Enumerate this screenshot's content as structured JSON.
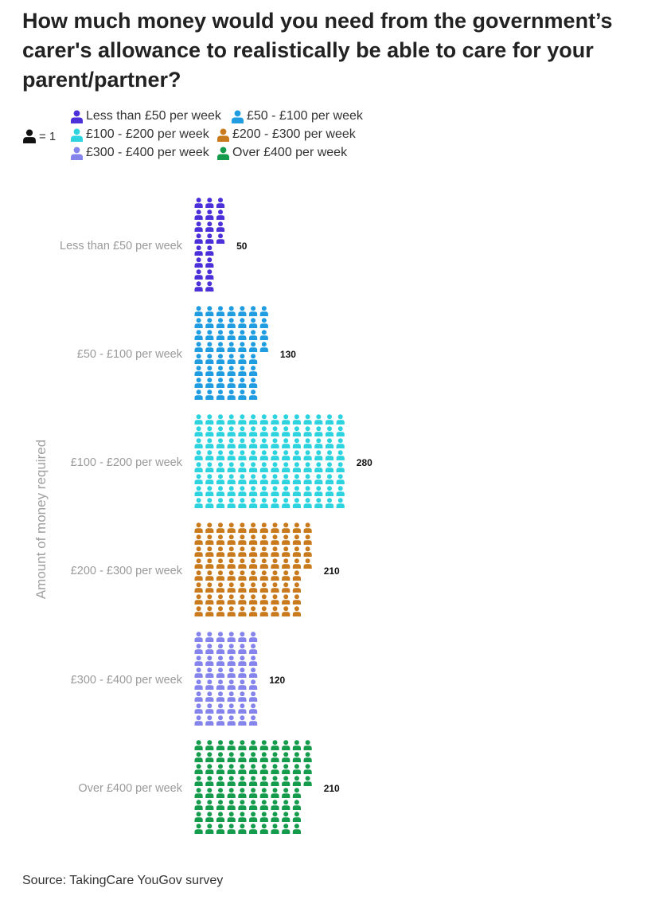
{
  "title": "How much money would you need from the government’s carer's allowance to realistically be able to care for your parent/partner?",
  "unit_key": {
    "label": "= 1",
    "icon": "person-icon"
  },
  "source": "Source: TakingCare YouGov survey",
  "chart_data": {
    "type": "bar",
    "subtype": "pictogram",
    "orientation": "horizontal",
    "ylabel": "Amount of money required",
    "icon_value": 1,
    "categories": [
      "Less than £50 per week",
      "£50 - £100 per week",
      "£100 - £200 per week",
      "£200 - £300 per week",
      "£300 - £400 per week",
      "Over £400 per week"
    ],
    "values": [
      50,
      130,
      280,
      210,
      120,
      210
    ],
    "colors": [
      "#4b2fd8",
      "#1f9de0",
      "#2ed3e0",
      "#c97a1d",
      "#8484ec",
      "#149c4c"
    ],
    "legend": {
      "placement": "top-left",
      "entries": [
        "Less than £50 per week",
        "£50 - £100 per week",
        "£100 - £200 per week",
        "£200 - £300 per week",
        "£300 - £400 per week",
        "Over £400 per week"
      ]
    },
    "grid": false
  }
}
